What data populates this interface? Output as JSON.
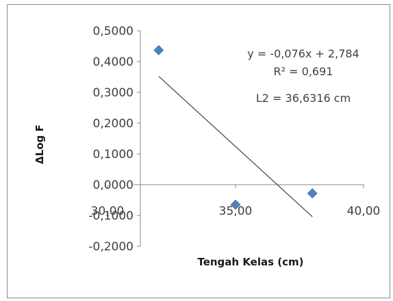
{
  "chart_data": {
    "type": "scatter",
    "title": "",
    "xlabel": "Tengah Kelas (cm)",
    "ylabel": "ΔLog F",
    "xlim": [
      30,
      40
    ],
    "ylim": [
      -0.2,
      0.5
    ],
    "x_ticks": [
      30,
      35,
      40
    ],
    "x_tick_labels": [
      "30,00",
      "35,00",
      "40,00"
    ],
    "y_ticks": [
      0.5,
      0.4,
      0.3,
      0.2,
      0.1,
      0.0,
      -0.1,
      -0.2
    ],
    "y_tick_labels": [
      "0,5000",
      "0,4000",
      "0,3000",
      "0,2000",
      "0,1000",
      "0,0000",
      "-0,1000",
      "-0,2000"
    ],
    "grid": false,
    "marker_color": "#4f81bd",
    "trendline_color": "#404040",
    "points": [
      {
        "x": 32.0,
        "y": 0.437
      },
      {
        "x": 35.0,
        "y": -0.065
      },
      {
        "x": 38.0,
        "y": -0.028
      }
    ],
    "trendline": {
      "slope": -0.076,
      "intercept": 2.784,
      "x_start": 32.0,
      "x_end": 38.0
    },
    "annotations": [
      "y = -0,076x + 2,784",
      "R² = 0,691",
      "L2 = 36,6316 cm"
    ]
  }
}
